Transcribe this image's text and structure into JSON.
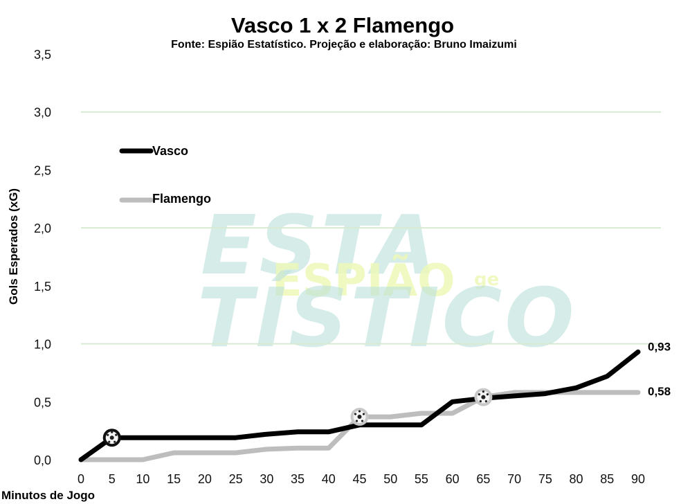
{
  "chart_data": {
    "type": "line",
    "title": "Vasco 1 x 2 Flamengo",
    "subtitle": "Fonte: Espião Estatístico. Projeção e elaboração: Bruno Imaizumi",
    "xlabel": "Minutos de Jogo",
    "ylabel": "Gols Esperados (xG)",
    "xlim": [
      0,
      90
    ],
    "ylim": [
      0,
      3.5
    ],
    "x_ticks": [
      "0",
      "5",
      "10",
      "15",
      "20",
      "25",
      "30",
      "35",
      "40",
      "45",
      "50",
      "55",
      "60",
      "65",
      "70",
      "75",
      "80",
      "85",
      "90"
    ],
    "y_ticks": [
      "0,0",
      "0,5",
      "1,0",
      "1,5",
      "2,0",
      "2,5",
      "3,0",
      "3,5"
    ],
    "grid": true,
    "legend_position": "top-left",
    "x": [
      0,
      5,
      10,
      15,
      20,
      25,
      30,
      35,
      40,
      45,
      50,
      55,
      60,
      65,
      70,
      75,
      80,
      85,
      90
    ],
    "series": [
      {
        "name": "Vasco",
        "color": "#000000",
        "values": [
          0.0,
          0.19,
          0.19,
          0.19,
          0.19,
          0.19,
          0.22,
          0.24,
          0.24,
          0.3,
          0.3,
          0.3,
          0.5,
          0.53,
          0.55,
          0.57,
          0.62,
          0.72,
          0.93
        ],
        "end_label": "0,93"
      },
      {
        "name": "Flamengo",
        "color": "#bdbdbd",
        "values": [
          0.0,
          0.0,
          0.0,
          0.06,
          0.06,
          0.06,
          0.09,
          0.1,
          0.1,
          0.37,
          0.37,
          0.4,
          0.4,
          0.54,
          0.58,
          0.58,
          0.58,
          0.58,
          0.58
        ],
        "end_label": "0,58"
      }
    ],
    "goal_markers": [
      {
        "team": "Vasco",
        "x": 5,
        "y": 0.19,
        "icon": "soccer-ball-icon"
      },
      {
        "team": "Flamengo",
        "x": 45,
        "y": 0.37,
        "icon": "soccer-ball-icon"
      },
      {
        "team": "Flamengo",
        "x": 65,
        "y": 0.54,
        "icon": "soccer-ball-icon"
      }
    ]
  },
  "watermark": {
    "line1": "ESTA",
    "line2": "ESPIÃO",
    "line2_suffix": "ge",
    "line3": "TÍSTICO"
  }
}
